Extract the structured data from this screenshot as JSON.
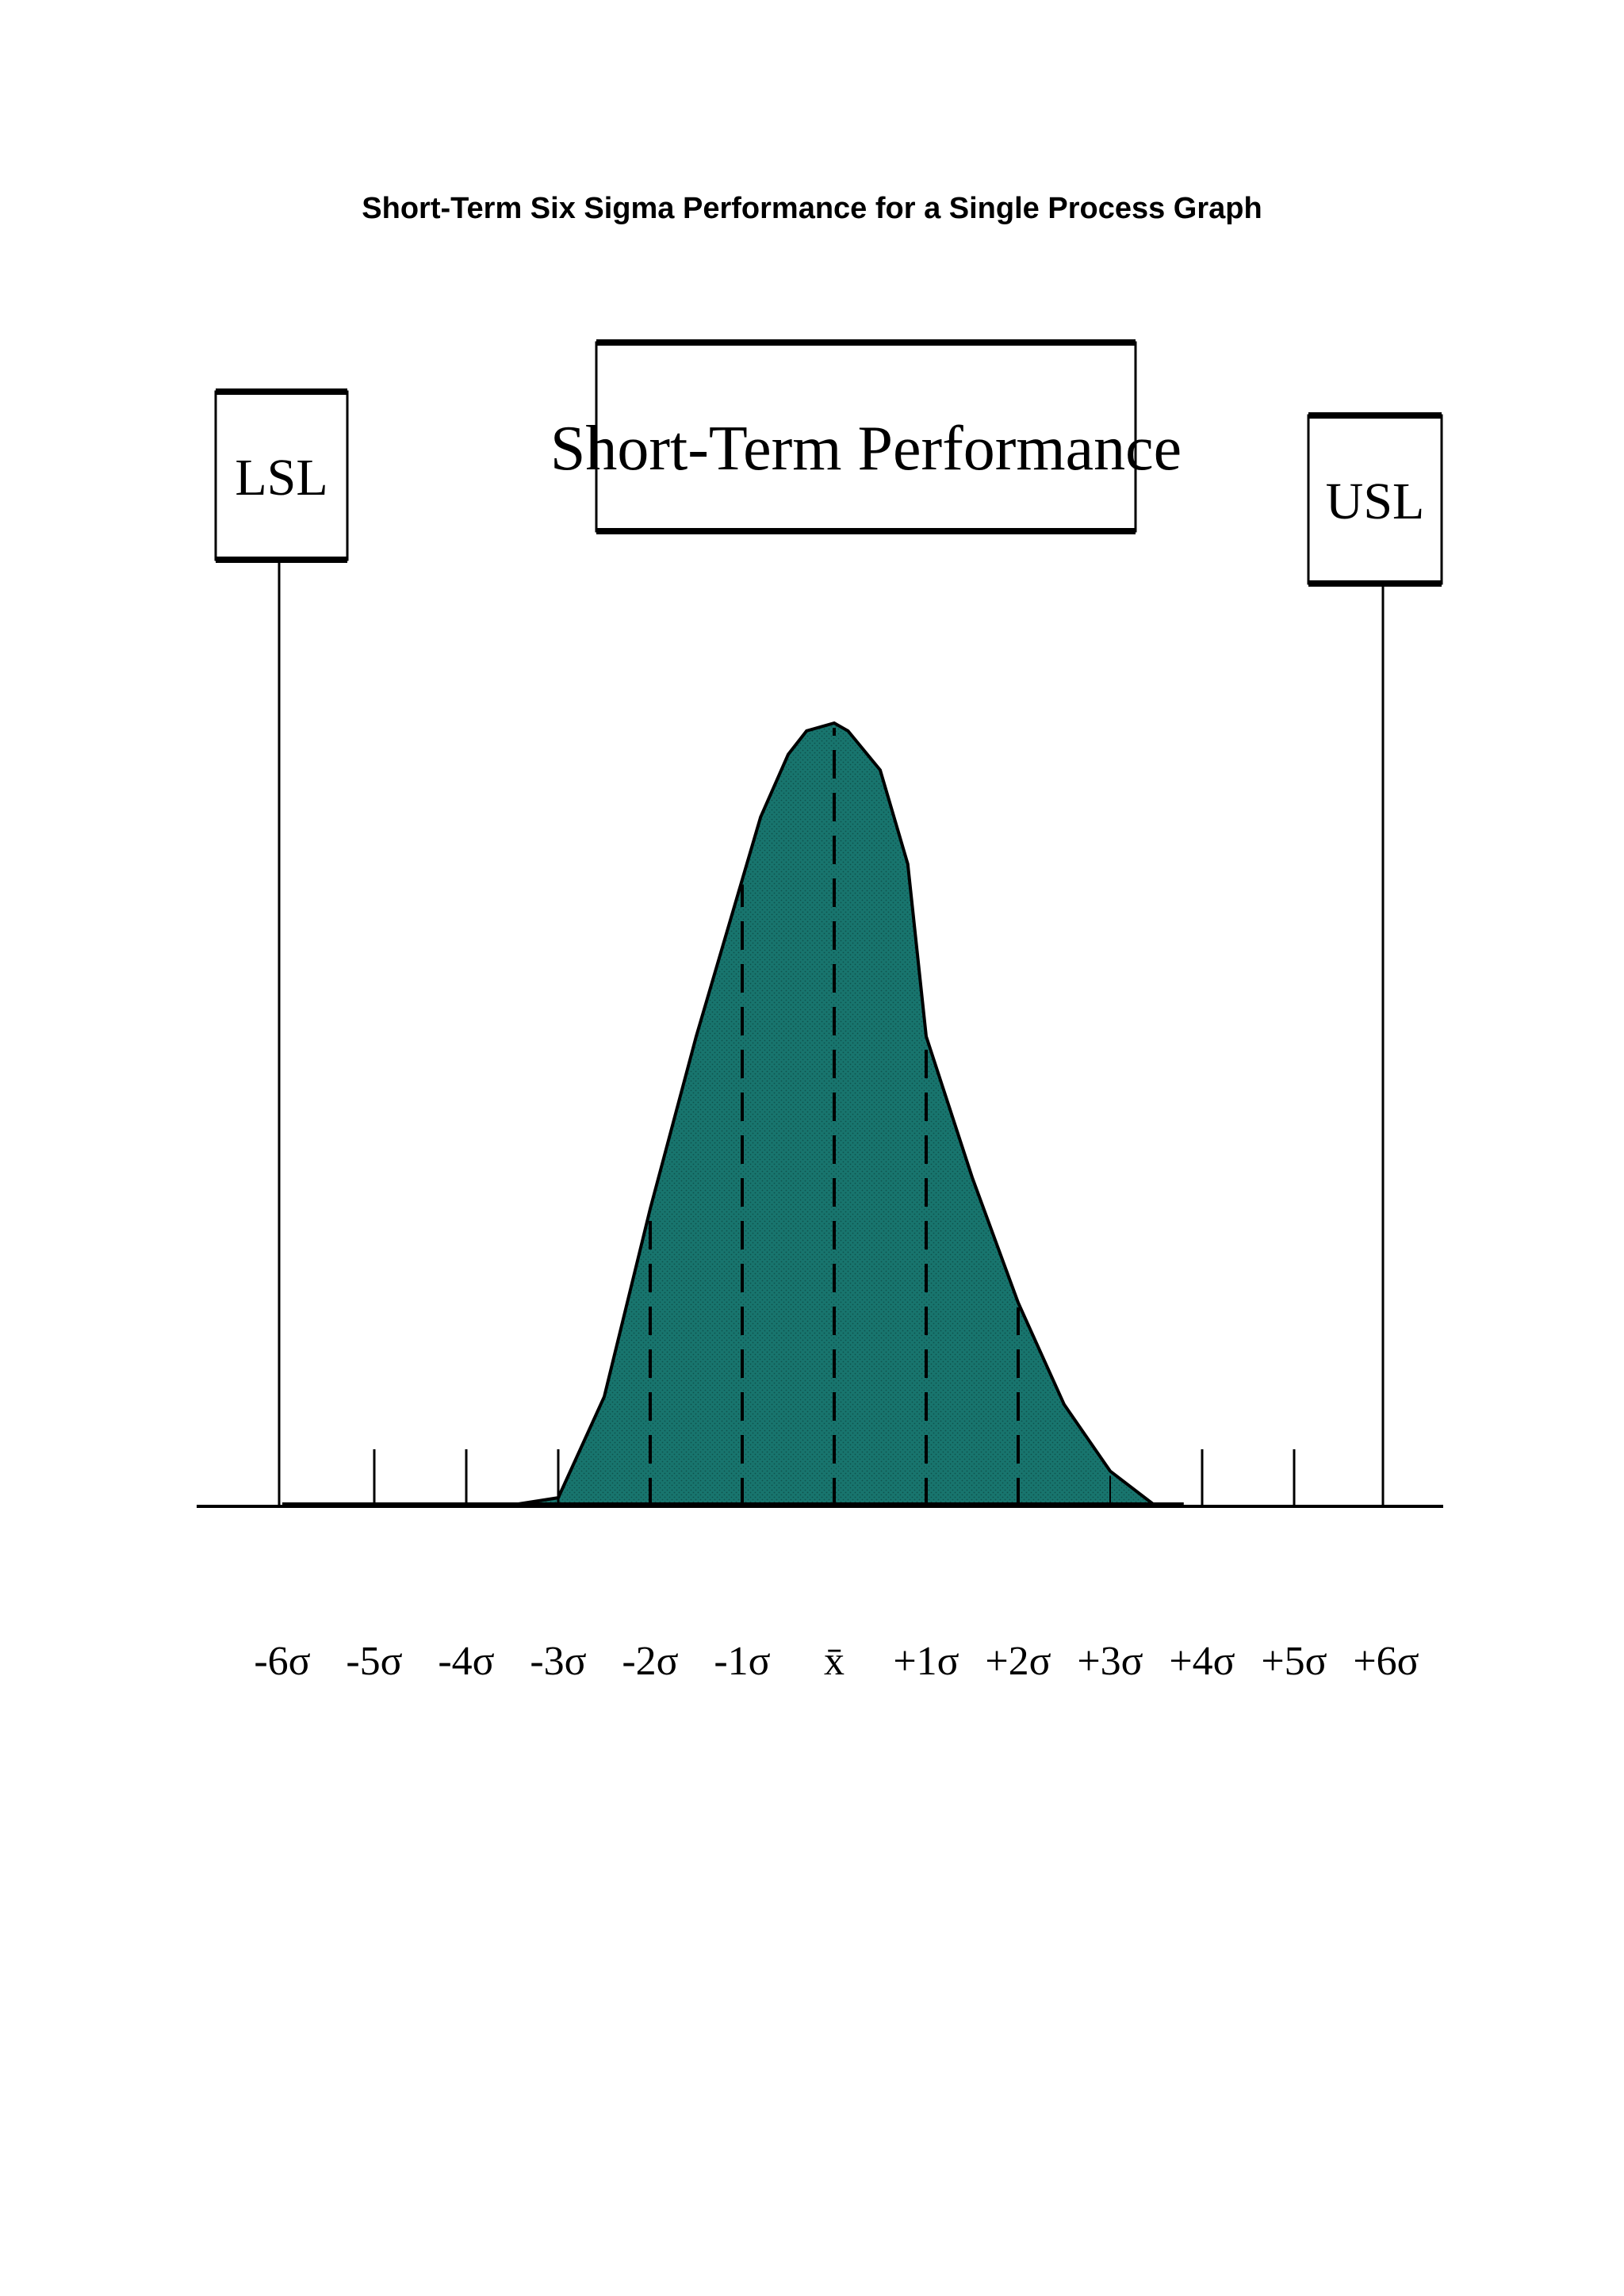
{
  "page": {
    "title": "Short-Term Six Sigma Performance for a Single Process Graph"
  },
  "chart_data": {
    "type": "area",
    "title": "Short-Term Performance",
    "xlabel": "",
    "ylabel": "",
    "x_tick_labels": [
      "-6σ",
      "-5σ",
      "-4σ",
      "-3σ",
      "-2σ",
      "-1σ",
      "x̄",
      "+1σ",
      "+2σ",
      "+3σ",
      "+4σ",
      "+5σ",
      "+6σ"
    ],
    "x_ticks": [
      -6,
      -5,
      -4,
      -3,
      -2,
      -1,
      0,
      1,
      2,
      3,
      4,
      5,
      6
    ],
    "xlim": [
      -6.9,
      6.6
    ],
    "distribution": "normal",
    "mean": 0,
    "sd": 1,
    "peak": 1,
    "curve": {
      "x": [
        -3.6,
        -3.0,
        -2.5,
        -2.0,
        -1.5,
        -1.0,
        -0.8,
        -0.5,
        -0.3,
        0.0,
        0.15,
        0.5,
        0.8,
        1.0,
        1.5,
        2.0,
        2.5,
        3.0,
        3.5
      ],
      "y": [
        0.0,
        0.011,
        0.14,
        0.38,
        0.6,
        0.8,
        0.88,
        0.96,
        0.99,
        1.0,
        0.99,
        0.94,
        0.82,
        0.6,
        0.42,
        0.26,
        0.13,
        0.045,
        0.0
      ]
    },
    "spec_limits": [
      {
        "name": "LSL",
        "x": -6
      },
      {
        "name": "USL",
        "x": 6
      }
    ],
    "fill_color": "#18756e",
    "colors": {
      "line": "#000000",
      "background": "#ffffff"
    }
  }
}
